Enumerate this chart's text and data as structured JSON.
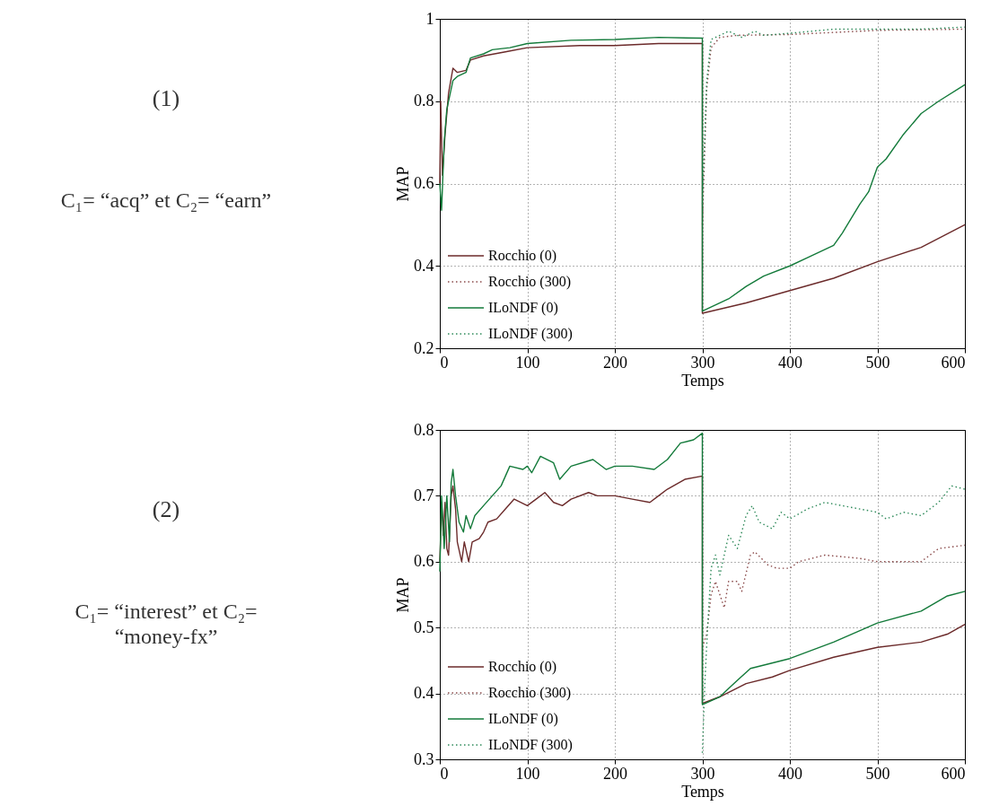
{
  "chart_data": [
    {
      "type": "other",
      "title": "(1)",
      "subtitle": "C₁= “acq” et C₂= “earn”"
    },
    {
      "type": "line",
      "xlabel": "Temps",
      "ylabel": "MAP",
      "xlim": [
        0,
        600
      ],
      "ylim": [
        0.2,
        1
      ],
      "xticks": [
        0,
        100,
        200,
        300,
        400,
        500,
        600
      ],
      "yticks": [
        0.2,
        0.4,
        0.6,
        0.8,
        1
      ],
      "grid": true,
      "legend": "bottom left",
      "series": [
        {
          "name": "Rocchio (0)",
          "color": "#6b2a2a",
          "line_style": "solid",
          "x": [
            0,
            1,
            3,
            6,
            10,
            15,
            20,
            30,
            35,
            50,
            75,
            100,
            160,
            200,
            250,
            300,
            300,
            350,
            400,
            450,
            500,
            550,
            600
          ],
          "values": [
            0.6,
            0.8,
            0.62,
            0.72,
            0.82,
            0.88,
            0.87,
            0.875,
            0.9,
            0.91,
            0.92,
            0.93,
            0.935,
            0.935,
            0.94,
            0.94,
            0.285,
            0.31,
            0.34,
            0.37,
            0.41,
            0.445,
            0.5
          ]
        },
        {
          "name": "Rocchio (300)",
          "color": "#8a4a4a",
          "line_style": "dotted",
          "x": [
            300,
            305,
            310,
            320,
            340,
            400,
            500,
            600
          ],
          "values": [
            0.5,
            0.83,
            0.93,
            0.955,
            0.96,
            0.962,
            0.972,
            0.975
          ]
        },
        {
          "name": "ILoNDF (0)",
          "color": "#137a3a",
          "line_style": "solid",
          "x": [
            0,
            2,
            5,
            8,
            12,
            15,
            20,
            30,
            35,
            50,
            60,
            80,
            100,
            150,
            200,
            250,
            300,
            300,
            330,
            350,
            370,
            400,
            420,
            450,
            460,
            480,
            490,
            500,
            510,
            530,
            550,
            570,
            600
          ],
          "values": [
            0.6,
            0.535,
            0.7,
            0.78,
            0.82,
            0.85,
            0.86,
            0.87,
            0.905,
            0.915,
            0.925,
            0.93,
            0.94,
            0.948,
            0.95,
            0.955,
            0.953,
            0.29,
            0.32,
            0.35,
            0.375,
            0.4,
            0.42,
            0.45,
            0.48,
            0.55,
            0.58,
            0.64,
            0.66,
            0.72,
            0.77,
            0.8,
            0.84
          ]
        },
        {
          "name": "ILoNDF (300)",
          "color": "#2e8a5a",
          "line_style": "dotted",
          "x": [
            300,
            305,
            310,
            320,
            330,
            345,
            360,
            370,
            400,
            450,
            500,
            550,
            600
          ],
          "values": [
            0.55,
            0.85,
            0.95,
            0.96,
            0.97,
            0.955,
            0.97,
            0.96,
            0.965,
            0.975,
            0.975,
            0.975,
            0.98
          ]
        }
      ]
    },
    {
      "type": "other",
      "title": "(2)",
      "subtitle": "C₁= “interest” et C₂= “money-fx”"
    },
    {
      "type": "line",
      "xlabel": "Temps",
      "ylabel": "MAP",
      "xlim": [
        0,
        600
      ],
      "ylim": [
        0.3,
        0.8
      ],
      "xticks": [
        0,
        100,
        200,
        300,
        400,
        500,
        600
      ],
      "yticks": [
        0.3,
        0.4,
        0.5,
        0.6,
        0.7,
        0.8
      ],
      "grid": true,
      "legend": "bottom left",
      "series": [
        {
          "name": "Rocchio (0)",
          "color": "#6b2a2a",
          "line_style": "solid",
          "x": [
            0,
            2,
            4,
            6,
            8,
            10,
            13,
            15,
            18,
            20,
            25,
            28,
            33,
            37,
            45,
            50,
            55,
            65,
            75,
            85,
            100,
            110,
            120,
            130,
            140,
            150,
            170,
            180,
            200,
            220,
            240,
            250,
            260,
            280,
            300,
            300,
            320,
            350,
            380,
            400,
            450,
            500,
            550,
            580,
            600
          ],
          "values": [
            0.6,
            0.69,
            0.64,
            0.69,
            0.62,
            0.61,
            0.7,
            0.715,
            0.68,
            0.63,
            0.6,
            0.63,
            0.6,
            0.63,
            0.635,
            0.645,
            0.66,
            0.665,
            0.68,
            0.695,
            0.685,
            0.695,
            0.705,
            0.69,
            0.685,
            0.695,
            0.705,
            0.7,
            0.7,
            0.695,
            0.69,
            0.7,
            0.71,
            0.725,
            0.73,
            0.385,
            0.395,
            0.415,
            0.425,
            0.435,
            0.455,
            0.47,
            0.478,
            0.49,
            0.505
          ]
        },
        {
          "name": "Rocchio (300)",
          "color": "#8a4a4a",
          "line_style": "dotted",
          "x": [
            300,
            305,
            310,
            315,
            320,
            325,
            330,
            340,
            345,
            355,
            360,
            375,
            385,
            400,
            410,
            440,
            480,
            500,
            530,
            550,
            570,
            600
          ],
          "values": [
            0.47,
            0.49,
            0.55,
            0.57,
            0.55,
            0.53,
            0.57,
            0.57,
            0.555,
            0.61,
            0.615,
            0.595,
            0.59,
            0.59,
            0.6,
            0.61,
            0.605,
            0.6,
            0.6,
            0.6,
            0.62,
            0.625
          ]
        },
        {
          "name": "ILoNDF (0)",
          "color": "#137a3a",
          "line_style": "solid",
          "x": [
            0,
            2,
            5,
            8,
            11,
            13,
            15,
            18,
            22,
            27,
            30,
            35,
            40,
            50,
            60,
            70,
            80,
            95,
            100,
            105,
            115,
            130,
            137,
            150,
            175,
            190,
            200,
            220,
            245,
            260,
            275,
            290,
            300,
            300,
            320,
            340,
            355,
            400,
            450,
            500,
            550,
            580,
            600
          ],
          "values": [
            0.585,
            0.7,
            0.62,
            0.7,
            0.63,
            0.72,
            0.74,
            0.7,
            0.66,
            0.645,
            0.67,
            0.65,
            0.67,
            0.685,
            0.7,
            0.715,
            0.745,
            0.74,
            0.745,
            0.735,
            0.76,
            0.75,
            0.725,
            0.745,
            0.755,
            0.74,
            0.745,
            0.745,
            0.74,
            0.755,
            0.78,
            0.785,
            0.795,
            0.383,
            0.395,
            0.42,
            0.438,
            0.453,
            0.478,
            0.507,
            0.525,
            0.548,
            0.555
          ]
        },
        {
          "name": "ILoNDF (300)",
          "color": "#2e8a5a",
          "line_style": "dotted",
          "x": [
            300,
            303,
            306,
            310,
            315,
            320,
            330,
            340,
            350,
            357,
            365,
            380,
            390,
            400,
            420,
            440,
            460,
            480,
            500,
            510,
            530,
            550,
            570,
            585,
            600
          ],
          "values": [
            0.31,
            0.42,
            0.5,
            0.59,
            0.61,
            0.58,
            0.64,
            0.62,
            0.67,
            0.685,
            0.66,
            0.65,
            0.675,
            0.665,
            0.68,
            0.69,
            0.685,
            0.68,
            0.675,
            0.665,
            0.675,
            0.67,
            0.69,
            0.715,
            0.71
          ]
        }
      ]
    }
  ]
}
